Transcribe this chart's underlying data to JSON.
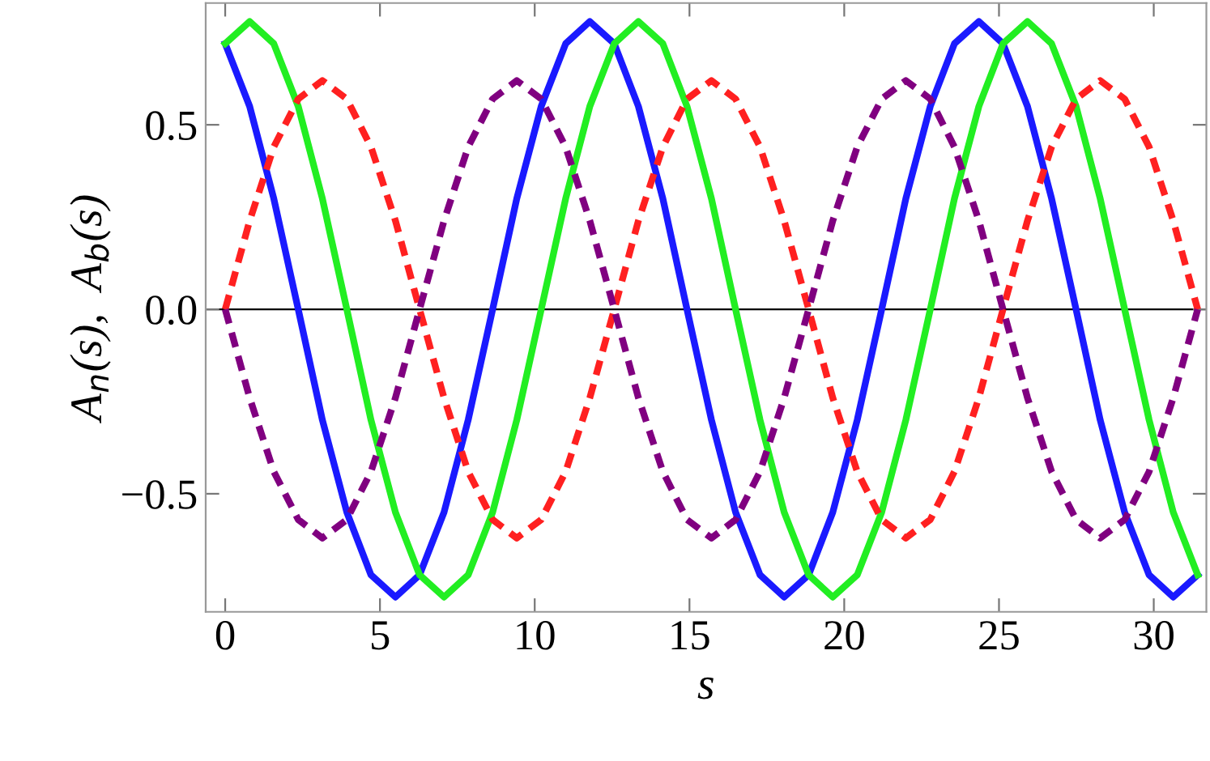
{
  "chart_data": {
    "type": "line",
    "xlabel": "s",
    "ylabel": "A$_{n}$(s),  A$_{b}$(s)",
    "x": [
      0,
      0.79,
      1.57,
      2.36,
      3.14,
      3.93,
      4.71,
      5.5,
      6.28,
      7.07,
      7.85,
      8.64,
      9.42,
      10.21,
      11.0,
      11.78,
      12.57,
      13.35,
      14.14,
      14.92,
      15.71,
      16.49,
      17.28,
      18.06,
      18.85,
      19.63,
      20.42,
      21.21,
      21.99,
      22.78,
      23.56,
      24.35,
      25.13,
      25.92,
      26.7,
      27.49,
      28.27,
      29.06,
      29.85,
      30.63,
      31.42
    ],
    "series": [
      {
        "color": "#1a1aff",
        "line_style": "solid",
        "values": [
          0.72,
          0.55,
          0.3,
          0,
          -0.3,
          -0.55,
          -0.72,
          -0.78,
          -0.72,
          -0.55,
          -0.3,
          0,
          0.3,
          0.55,
          0.72,
          0.78,
          0.72,
          0.55,
          0.3,
          0,
          -0.3,
          -0.55,
          -0.72,
          -0.78,
          -0.72,
          -0.55,
          -0.3,
          0,
          0.3,
          0.55,
          0.72,
          0.78,
          0.72,
          0.55,
          0.3,
          0,
          -0.3,
          -0.55,
          -0.72,
          -0.78,
          -0.72
        ]
      },
      {
        "color": "#22ee22",
        "line_style": "solid",
        "values": [
          0.72,
          0.78,
          0.72,
          0.55,
          0.3,
          0,
          -0.3,
          -0.55,
          -0.72,
          -0.78,
          -0.72,
          -0.55,
          -0.3,
          0,
          0.3,
          0.55,
          0.72,
          0.78,
          0.72,
          0.55,
          0.3,
          0,
          -0.3,
          -0.55,
          -0.72,
          -0.78,
          -0.72,
          -0.55,
          -0.3,
          0,
          0.3,
          0.55,
          0.72,
          0.78,
          0.72,
          0.55,
          0.3,
          0,
          -0.3,
          -0.55,
          -0.72
        ]
      },
      {
        "color": "#ff2020",
        "line_style": "dashed",
        "values": [
          0,
          0.24,
          0.44,
          0.57,
          0.62,
          0.57,
          0.44,
          0.24,
          0,
          -0.24,
          -0.44,
          -0.57,
          -0.62,
          -0.57,
          -0.44,
          -0.24,
          0,
          0.24,
          0.44,
          0.57,
          0.62,
          0.57,
          0.44,
          0.24,
          0,
          -0.24,
          -0.44,
          -0.57,
          -0.62,
          -0.57,
          -0.44,
          -0.24,
          0,
          0.24,
          0.44,
          0.57,
          0.62,
          0.57,
          0.44,
          0.24,
          0
        ]
      },
      {
        "color": "#800080",
        "line_style": "dashed",
        "values": [
          0,
          -0.24,
          -0.44,
          -0.57,
          -0.62,
          -0.57,
          -0.44,
          -0.24,
          0,
          0.24,
          0.44,
          0.57,
          0.62,
          0.57,
          0.44,
          0.24,
          0,
          -0.24,
          -0.44,
          -0.57,
          -0.62,
          -0.57,
          -0.44,
          -0.24,
          0,
          0.24,
          0.44,
          0.57,
          0.62,
          0.57,
          0.44,
          0.24,
          0,
          -0.24,
          -0.44,
          -0.57,
          -0.62,
          -0.57,
          -0.44,
          -0.24,
          0
        ]
      }
    ],
    "xlim": [
      -0.63,
      31.7
    ],
    "ylim": [
      -0.82,
      0.83
    ],
    "xticks": [
      0,
      5,
      10,
      15,
      20,
      25,
      30
    ],
    "yticks": [
      {
        "value": -0.5,
        "label": "−0.5"
      },
      {
        "value": 0,
        "label": "0.0"
      },
      {
        "value": 0.5,
        "label": "0.5"
      }
    ],
    "ref_lines": [
      {
        "axis": "y",
        "value": 0,
        "color": "#000000"
      }
    ],
    "grid": false,
    "legend": false,
    "marker": "none"
  }
}
